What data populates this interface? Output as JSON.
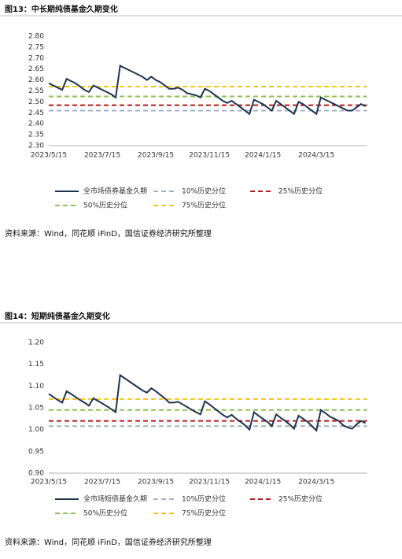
{
  "chart_data": [
    {
      "type": "line",
      "title": "图13：中长期纯债基金久期变化",
      "source": "资料来源：Wind，同花顺 iFinD，国信证券经济研究所整理",
      "categories": [
        "2023/5/15",
        null,
        null,
        null,
        null,
        null,
        null,
        null,
        null,
        null,
        null,
        null,
        "2023/7/15",
        null,
        null,
        null,
        null,
        null,
        null,
        null,
        null,
        null,
        null,
        null,
        "2023/9/15",
        null,
        null,
        null,
        null,
        null,
        null,
        null,
        null,
        null,
        null,
        null,
        "2023/11/15",
        null,
        null,
        null,
        null,
        null,
        null,
        null,
        null,
        null,
        null,
        null,
        "2024/1/15",
        null,
        null,
        null,
        null,
        null,
        null,
        null,
        null,
        null,
        null,
        null,
        "2024/3/15",
        null,
        null,
        null,
        null,
        null,
        null,
        null,
        null,
        null,
        null,
        null
      ],
      "series": [
        {
          "name": "全市场债券基金久期",
          "color": "#1f3350",
          "values": [
            2.585,
            2.575,
            2.565,
            2.555,
            2.605,
            2.595,
            2.585,
            2.57,
            2.555,
            2.545,
            2.575,
            2.565,
            2.555,
            2.545,
            2.535,
            2.52,
            2.665,
            2.655,
            2.645,
            2.635,
            2.625,
            2.615,
            2.6,
            2.615,
            2.6,
            2.59,
            2.575,
            2.56,
            2.56,
            2.565,
            2.555,
            2.54,
            2.535,
            2.53,
            2.52,
            2.56,
            2.55,
            2.535,
            2.52,
            2.505,
            2.495,
            2.505,
            2.49,
            2.475,
            2.46,
            2.445,
            2.51,
            2.5,
            2.49,
            2.475,
            2.46,
            2.505,
            2.49,
            2.475,
            2.46,
            2.445,
            2.5,
            2.49,
            2.475,
            2.46,
            2.445,
            2.52,
            2.51,
            2.5,
            2.49,
            2.48,
            2.47,
            2.46,
            2.46,
            2.475,
            2.49,
            2.48
          ]
        }
      ],
      "reference_lines": [
        {
          "name": "10%历史分位",
          "color": "#a6b1c2",
          "value": 2.46
        },
        {
          "name": "25%历史分位",
          "color": "#b01c1c",
          "value": 2.485
        },
        {
          "name": "50%历史分位",
          "color": "#8cc152",
          "value": 2.525
        },
        {
          "name": "75%历史分位",
          "color": "#f5c518",
          "value": 2.57
        }
      ],
      "ylim": [
        2.3,
        2.8
      ],
      "yticks": [
        {
          "value": 2.3,
          "label": "2.30"
        },
        {
          "value": 2.35,
          "label": "2.35"
        },
        {
          "value": 2.4,
          "label": "2.40"
        },
        {
          "value": 2.45,
          "label": "2.45"
        },
        {
          "value": 2.5,
          "label": "2.50"
        },
        {
          "value": 2.55,
          "label": "2.55"
        },
        {
          "value": 2.6,
          "label": "2.60"
        },
        {
          "value": 2.65,
          "label": "2.65"
        },
        {
          "value": 2.7,
          "label": "2.70"
        },
        {
          "value": 2.75,
          "label": "2.75"
        },
        {
          "value": 2.8,
          "label": "2.80"
        }
      ]
    },
    {
      "type": "line",
      "title": "图14：短期纯债基金久期变化",
      "source": "资料来源：Wind，同花顺 iFinD，国信证券经济研究所整理",
      "categories": [
        "2023/5/15",
        null,
        null,
        null,
        null,
        null,
        null,
        null,
        null,
        null,
        null,
        null,
        "2023/7/15",
        null,
        null,
        null,
        null,
        null,
        null,
        null,
        null,
        null,
        null,
        null,
        "2023/9/15",
        null,
        null,
        null,
        null,
        null,
        null,
        null,
        null,
        null,
        null,
        null,
        "2023/11/15",
        null,
        null,
        null,
        null,
        null,
        null,
        null,
        null,
        null,
        null,
        null,
        "2024/1/15",
        null,
        null,
        null,
        null,
        null,
        null,
        null,
        null,
        null,
        null,
        null,
        "2024/3/15",
        null,
        null,
        null,
        null,
        null,
        null,
        null,
        null,
        null,
        null,
        null
      ],
      "series": [
        {
          "name": "全市场短债基金久期",
          "color": "#1f3350",
          "values": [
            1.082,
            1.075,
            1.068,
            1.062,
            1.088,
            1.082,
            1.075,
            1.068,
            1.062,
            1.055,
            1.072,
            1.066,
            1.06,
            1.054,
            1.047,
            1.04,
            1.125,
            1.118,
            1.111,
            1.104,
            1.097,
            1.09,
            1.085,
            1.095,
            1.088,
            1.08,
            1.072,
            1.062,
            1.062,
            1.064,
            1.058,
            1.052,
            1.046,
            1.04,
            1.035,
            1.065,
            1.058,
            1.05,
            1.042,
            1.034,
            1.028,
            1.034,
            1.025,
            1.018,
            1.01,
            1.0,
            1.04,
            1.032,
            1.025,
            1.018,
            1.008,
            1.035,
            1.027,
            1.02,
            1.012,
            1.002,
            1.032,
            1.025,
            1.018,
            1.008,
            0.998,
            1.045,
            1.038,
            1.03,
            1.025,
            1.02,
            1.01,
            1.005,
            1.002,
            1.012,
            1.02,
            1.015
          ]
        }
      ],
      "reference_lines": [
        {
          "name": "10%历史分位",
          "color": "#a6b1c2",
          "value": 1.008
        },
        {
          "name": "25%历史分位",
          "color": "#b01c1c",
          "value": 1.02
        },
        {
          "name": "50%历史分位",
          "color": "#8cc152",
          "value": 1.045
        },
        {
          "name": "75%历史分位",
          "color": "#f5c518",
          "value": 1.07
        }
      ],
      "ylim": [
        0.9,
        1.2
      ],
      "yticks": [
        {
          "value": 0.9,
          "label": "0.90"
        },
        {
          "value": 0.95,
          "label": "0.95"
        },
        {
          "value": 1.0,
          "label": "1.00"
        },
        {
          "value": 1.05,
          "label": "1.05"
        },
        {
          "value": 1.1,
          "label": "1.10"
        },
        {
          "value": 1.15,
          "label": "1.15"
        },
        {
          "value": 1.2,
          "label": "1.20"
        }
      ]
    }
  ]
}
